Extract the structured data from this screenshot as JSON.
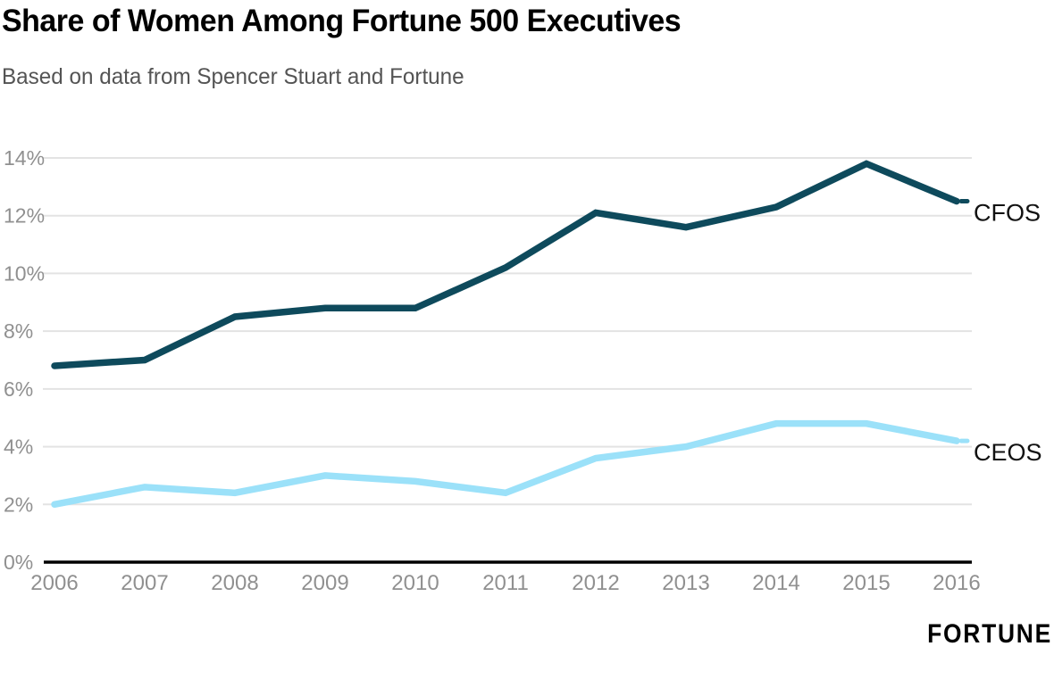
{
  "header": {
    "title": "Share of Women Among Fortune 500 Executives",
    "subtitle": "Based on data from Spencer Stuart and Fortune"
  },
  "footer": {
    "brand": "FORTUNE"
  },
  "chart_data": {
    "type": "line",
    "x": [
      2006,
      2007,
      2008,
      2009,
      2010,
      2011,
      2012,
      2013,
      2014,
      2015,
      2016
    ],
    "series": [
      {
        "name": "CFOS",
        "color": "#0E4A5C",
        "values": [
          6.8,
          7.0,
          8.5,
          8.8,
          8.8,
          10.2,
          12.1,
          11.6,
          12.3,
          13.8,
          12.5
        ]
      },
      {
        "name": "CEOS",
        "color": "#9BE1F9",
        "values": [
          2.0,
          2.6,
          2.4,
          3.0,
          2.8,
          2.4,
          3.6,
          4.0,
          4.8,
          4.8,
          4.2
        ]
      }
    ],
    "title": "Share of Women Among Fortune 500 Executives",
    "subtitle": "Based on data from Spencer Stuart and Fortune",
    "xlabel": "",
    "ylabel": "",
    "ylim": [
      0,
      14
    ],
    "y_ticks": [
      "0%",
      "2%",
      "4%",
      "6%",
      "8%",
      "10%",
      "12%",
      "14%"
    ],
    "y_tick_values": [
      0,
      2,
      4,
      6,
      8,
      10,
      12,
      14
    ],
    "grid": true,
    "legend_position": "right-end-labels",
    "colors": {
      "grid_line": "#E3E3E3",
      "axis_line": "#000000",
      "tick_text": "#909090",
      "series_label_text": "#111111",
      "title_text": "#000000",
      "subtitle_text": "#545454"
    }
  }
}
